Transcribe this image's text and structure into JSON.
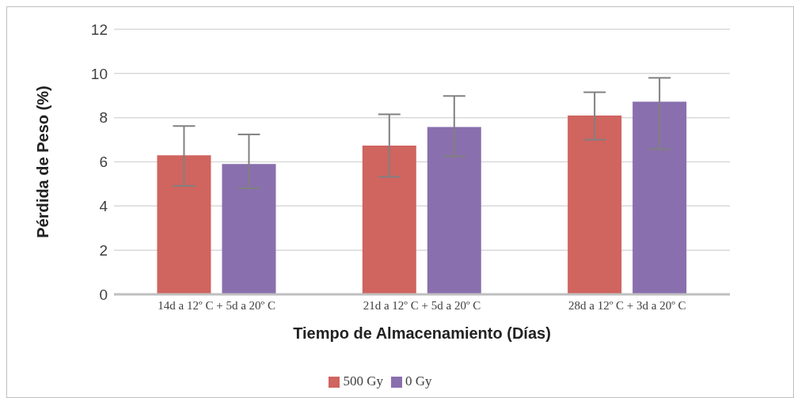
{
  "chart_data": {
    "type": "bar",
    "xlabel": "Tiempo de Almacenamiento (Días)",
    "ylabel": "Pérdida de Peso (%)",
    "categories": [
      "14d a 12º C + 5d a 20º C",
      "21d a 12º C + 5d a 20º C",
      "28d a 12º C + 3d a 20º C"
    ],
    "series": [
      {
        "name": "500 Gy",
        "color": "#d0645f",
        "values": [
          6.3,
          6.73,
          8.1
        ],
        "errors": [
          [
            4.91,
            7.62
          ],
          [
            5.32,
            8.15
          ],
          [
            7.0,
            9.15
          ]
        ]
      },
      {
        "name": "0 Gy",
        "color": "#8a6fae",
        "values": [
          5.9,
          7.58,
          8.72
        ],
        "errors": [
          [
            4.8,
            7.24
          ],
          [
            6.25,
            8.98
          ],
          [
            6.57,
            9.8
          ]
        ]
      }
    ],
    "ylim": [
      0,
      12
    ],
    "yticks": [
      0,
      2,
      4,
      6,
      8,
      10,
      12
    ],
    "grid": "y",
    "legend": "bottom"
  }
}
